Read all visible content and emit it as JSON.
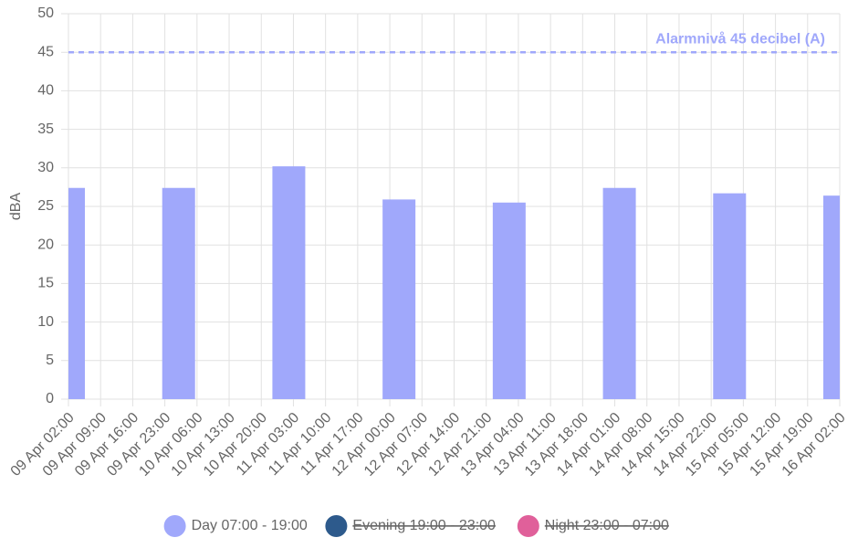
{
  "chart_data": {
    "type": "bar",
    "y_label": "dBA",
    "ylim": [
      0,
      50
    ],
    "yticks": [
      0,
      5,
      10,
      15,
      20,
      25,
      30,
      35,
      40,
      45,
      50
    ],
    "xlim": [
      "09 Apr 02:00",
      "16 Apr 02:00"
    ],
    "xticks": [
      "09 Apr 02:00",
      "09 Apr 09:00",
      "09 Apr 16:00",
      "09 Apr 23:00",
      "10 Apr 06:00",
      "10 Apr 13:00",
      "10 Apr 20:00",
      "11 Apr 03:00",
      "11 Apr 10:00",
      "11 Apr 17:00",
      "12 Apr 00:00",
      "12 Apr 07:00",
      "12 Apr 14:00",
      "12 Apr 21:00",
      "13 Apr 04:00",
      "13 Apr 11:00",
      "13 Apr 18:00",
      "14 Apr 01:00",
      "14 Apr 08:00",
      "14 Apr 15:00",
      "14 Apr 22:00",
      "15 Apr 05:00",
      "15 Apr 12:00",
      "15 Apr 19:00",
      "16 Apr 02:00"
    ],
    "x": [
      "09 Apr 02:00",
      "10 Apr 02:00",
      "11 Apr 02:00",
      "12 Apr 02:00",
      "13 Apr 02:00",
      "14 Apr 02:00",
      "15 Apr 02:00",
      "16 Apr 02:00"
    ],
    "grid": true,
    "series": [
      {
        "name": "Day 07:00 - 19:00",
        "color": "#a0a8fb",
        "hidden": false,
        "values": [
          27.4,
          27.4,
          30.2,
          25.9,
          25.5,
          27.4,
          26.7,
          26.4
        ]
      },
      {
        "name": "Evening 19:00 - 23:00",
        "color": "#2d5a8c",
        "hidden": true,
        "values": [
          null,
          null,
          null,
          null,
          null,
          null,
          null,
          null
        ]
      },
      {
        "name": "Night 23:00 - 07:00",
        "color": "#e0609a",
        "hidden": true,
        "values": [
          null,
          null,
          null,
          null,
          null,
          null,
          null,
          null
        ]
      }
    ],
    "annotation": {
      "label": "Alarmnivå 45 decibel (A)",
      "value": 45,
      "color": "#a0a8fb"
    }
  }
}
